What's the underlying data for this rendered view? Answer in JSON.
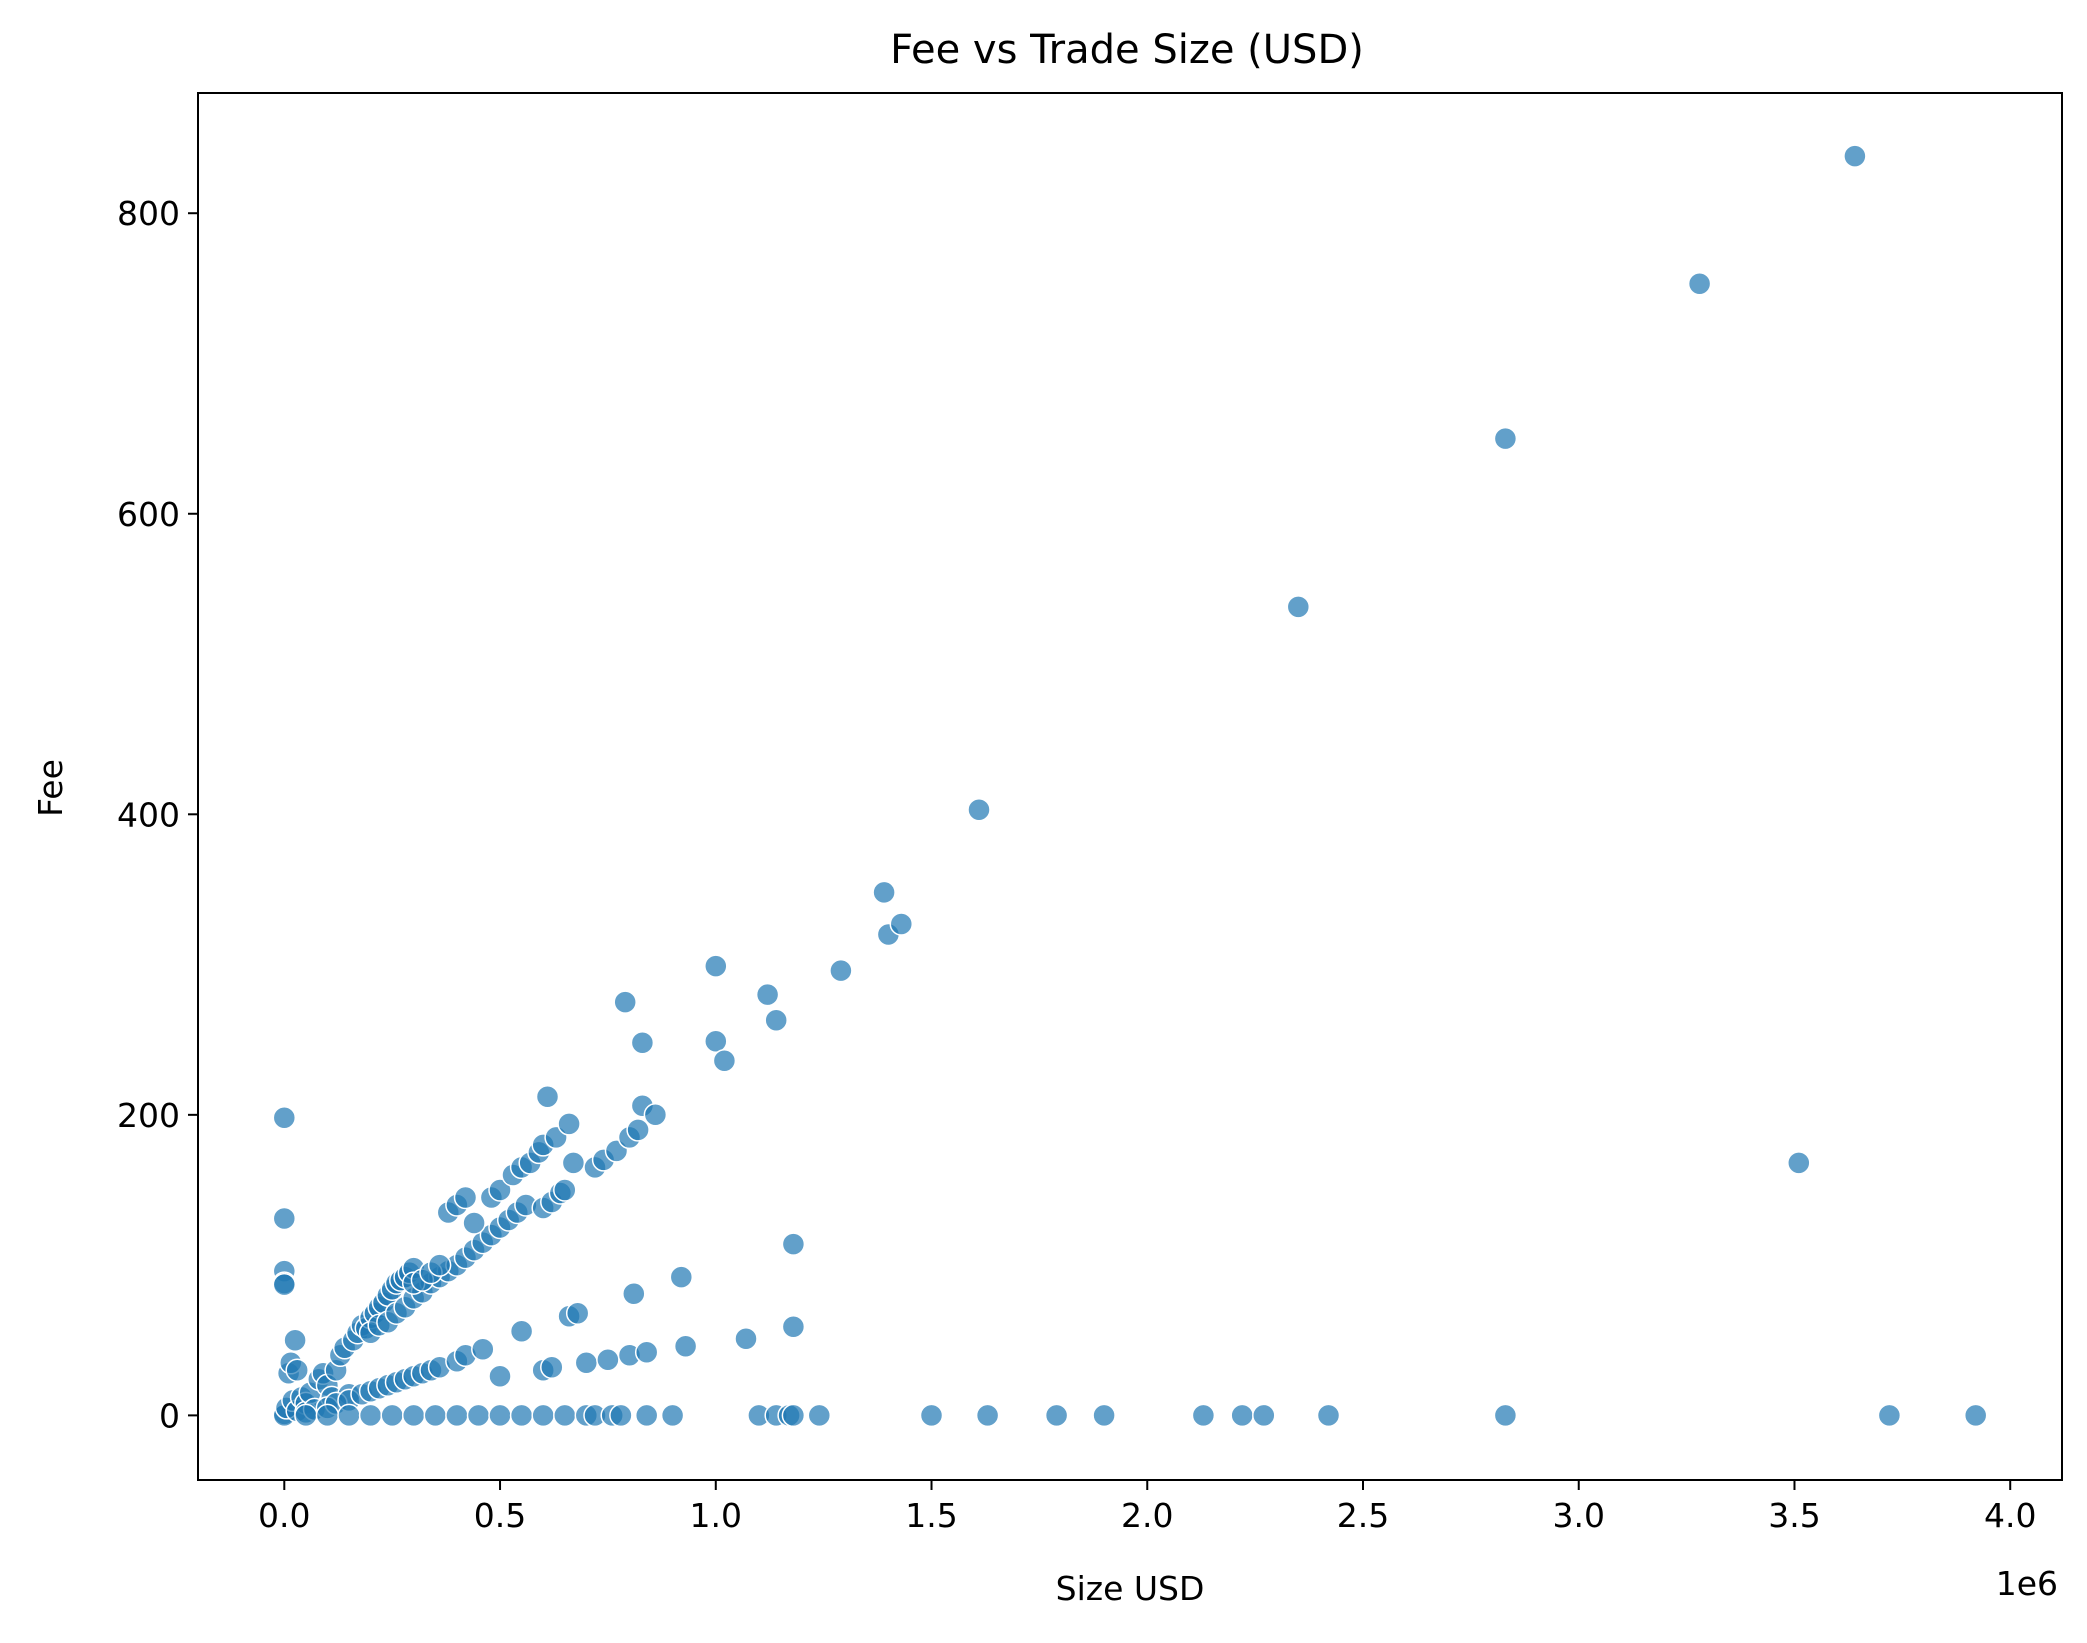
{
  "chart_data": {
    "type": "scatter",
    "title": "Fee vs Trade Size (USD)",
    "xlabel": "Size USD",
    "ylabel": "Fee",
    "x_offset_label": "1e6",
    "x_scale_factor": 1000000,
    "xlim": [
      -0.2,
      4.12
    ],
    "ylim": [
      -43,
      880
    ],
    "xticks": [
      0.0,
      0.5,
      1.0,
      1.5,
      2.0,
      2.5,
      3.0,
      3.5,
      4.0
    ],
    "xtick_labels": [
      "0.0",
      "0.5",
      "1.0",
      "1.5",
      "2.0",
      "2.5",
      "3.0",
      "3.5",
      "4.0"
    ],
    "yticks": [
      0,
      200,
      400,
      600,
      800
    ],
    "ytick_labels": [
      "0",
      "200",
      "400",
      "600",
      "800"
    ],
    "grid": false,
    "legend": "none",
    "colors": {
      "marker": "#1f77b4",
      "marker_edge": "#ffffff"
    },
    "series": [
      {
        "points": [
          [
            0.0,
            198
          ],
          [
            0.0,
            131
          ],
          [
            0.0,
            96
          ],
          [
            0.0,
            88
          ],
          [
            0.0,
            87
          ],
          [
            0.0,
            1
          ],
          [
            0.0,
            0
          ],
          [
            0.005,
            5
          ],
          [
            0.01,
            28
          ],
          [
            0.015,
            35
          ],
          [
            0.02,
            10
          ],
          [
            0.025,
            50
          ],
          [
            0.03,
            30
          ],
          [
            0.03,
            3
          ],
          [
            0.04,
            12
          ],
          [
            0.05,
            8
          ],
          [
            0.05,
            2
          ],
          [
            0.06,
            15
          ],
          [
            0.07,
            4
          ],
          [
            0.08,
            24
          ],
          [
            0.09,
            28
          ],
          [
            0.1,
            20
          ],
          [
            0.11,
            12
          ],
          [
            0.12,
            30
          ],
          [
            0.13,
            40
          ],
          [
            0.14,
            45
          ],
          [
            0.15,
            14
          ],
          [
            0.16,
            50
          ],
          [
            0.17,
            55
          ],
          [
            0.18,
            60
          ],
          [
            0.19,
            58
          ],
          [
            0.2,
            65
          ],
          [
            0.21,
            68
          ],
          [
            0.22,
            72
          ],
          [
            0.23,
            75
          ],
          [
            0.24,
            80
          ],
          [
            0.25,
            84
          ],
          [
            0.26,
            88
          ],
          [
            0.27,
            90
          ],
          [
            0.28,
            92
          ],
          [
            0.29,
            95
          ],
          [
            0.3,
            98
          ],
          [
            0.2,
            55
          ],
          [
            0.22,
            60
          ],
          [
            0.24,
            62
          ],
          [
            0.26,
            68
          ],
          [
            0.28,
            72
          ],
          [
            0.3,
            78
          ],
          [
            0.32,
            82
          ],
          [
            0.34,
            88
          ],
          [
            0.36,
            92
          ],
          [
            0.38,
            96
          ],
          [
            0.4,
            100
          ],
          [
            0.42,
            105
          ],
          [
            0.44,
            110
          ],
          [
            0.46,
            115
          ],
          [
            0.48,
            120
          ],
          [
            0.5,
            125
          ],
          [
            0.52,
            130
          ],
          [
            0.54,
            135
          ],
          [
            0.56,
            140
          ],
          [
            0.6,
            138
          ],
          [
            0.62,
            142
          ],
          [
            0.64,
            148
          ],
          [
            0.65,
            150
          ],
          [
            0.3,
            88
          ],
          [
            0.32,
            90
          ],
          [
            0.34,
            95
          ],
          [
            0.36,
            100
          ],
          [
            0.38,
            135
          ],
          [
            0.4,
            140
          ],
          [
            0.42,
            145
          ],
          [
            0.44,
            128
          ],
          [
            0.48,
            145
          ],
          [
            0.5,
            150
          ],
          [
            0.53,
            160
          ],
          [
            0.55,
            165
          ],
          [
            0.57,
            168
          ],
          [
            0.59,
            175
          ],
          [
            0.6,
            180
          ],
          [
            0.61,
            212
          ],
          [
            0.63,
            185
          ],
          [
            0.66,
            194
          ],
          [
            0.67,
            168
          ],
          [
            0.72,
            165
          ],
          [
            0.74,
            170
          ],
          [
            0.77,
            176
          ],
          [
            0.8,
            185
          ],
          [
            0.82,
            190
          ],
          [
            0.83,
            206
          ],
          [
            0.86,
            200
          ],
          [
            0.79,
            275
          ],
          [
            0.83,
            248
          ],
          [
            1.0,
            249
          ],
          [
            1.0,
            299
          ],
          [
            1.02,
            236
          ],
          [
            1.12,
            280
          ],
          [
            1.14,
            263
          ],
          [
            1.29,
            296
          ],
          [
            1.39,
            348
          ],
          [
            1.4,
            320
          ],
          [
            1.43,
            327
          ],
          [
            1.61,
            403
          ],
          [
            2.35,
            538
          ],
          [
            2.83,
            650
          ],
          [
            3.28,
            753
          ],
          [
            3.64,
            838
          ],
          [
            0.1,
            5
          ],
          [
            0.12,
            8
          ],
          [
            0.15,
            10
          ],
          [
            0.18,
            14
          ],
          [
            0.2,
            16
          ],
          [
            0.22,
            18
          ],
          [
            0.24,
            20
          ],
          [
            0.26,
            22
          ],
          [
            0.28,
            24
          ],
          [
            0.3,
            26
          ],
          [
            0.32,
            28
          ],
          [
            0.34,
            30
          ],
          [
            0.36,
            32
          ],
          [
            0.4,
            36
          ],
          [
            0.42,
            40
          ],
          [
            0.46,
            44
          ],
          [
            0.5,
            26
          ],
          [
            0.55,
            56
          ],
          [
            0.6,
            30
          ],
          [
            0.62,
            32
          ],
          [
            0.66,
            66
          ],
          [
            0.68,
            68
          ],
          [
            0.7,
            35
          ],
          [
            0.75,
            37
          ],
          [
            0.8,
            40
          ],
          [
            0.81,
            81
          ],
          [
            0.84,
            42
          ],
          [
            0.92,
            92
          ],
          [
            0.93,
            46
          ],
          [
            1.07,
            51
          ],
          [
            1.18,
            59
          ],
          [
            1.18,
            114
          ],
          [
            3.51,
            168
          ],
          [
            0.05,
            0
          ],
          [
            0.1,
            0
          ],
          [
            0.15,
            0
          ],
          [
            0.2,
            0
          ],
          [
            0.25,
            0
          ],
          [
            0.3,
            0
          ],
          [
            0.35,
            0
          ],
          [
            0.4,
            0
          ],
          [
            0.45,
            0
          ],
          [
            0.5,
            0
          ],
          [
            0.55,
            0
          ],
          [
            0.6,
            0
          ],
          [
            0.65,
            0
          ],
          [
            0.7,
            0
          ],
          [
            0.72,
            0
          ],
          [
            0.76,
            0
          ],
          [
            0.78,
            0
          ],
          [
            0.84,
            0
          ],
          [
            0.9,
            0
          ],
          [
            1.1,
            0
          ],
          [
            1.14,
            0
          ],
          [
            1.17,
            0
          ],
          [
            1.18,
            0
          ],
          [
            1.24,
            0
          ],
          [
            1.5,
            0
          ],
          [
            1.63,
            0
          ],
          [
            1.79,
            0
          ],
          [
            1.9,
            0
          ],
          [
            2.13,
            0
          ],
          [
            2.22,
            0
          ],
          [
            2.27,
            0
          ],
          [
            2.42,
            0
          ],
          [
            2.83,
            0
          ],
          [
            3.72,
            0
          ],
          [
            3.92,
            0
          ]
        ]
      }
    ]
  }
}
